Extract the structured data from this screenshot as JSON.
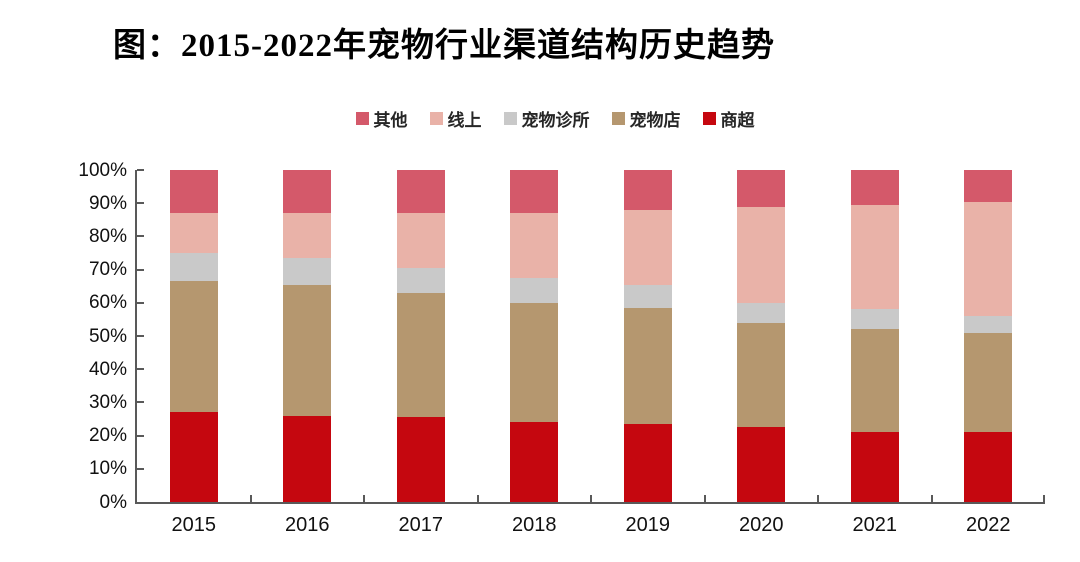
{
  "title": "图：2015-2022年宠物行业渠道结构历史趋势",
  "colors": {
    "axis": "#595959",
    "text": "#111111",
    "shangchao_red": "#c5070f",
    "chongwudian_tan": "#b5976f",
    "zhensuo_gray": "#c9c9c9",
    "xianshang_pink": "#e9b2a8",
    "qita_rose": "#d4596a"
  },
  "chart_data": {
    "type": "bar",
    "stacked": true,
    "title": "图：2015-2022年宠物行业渠道结构历史趋势",
    "categories": [
      "2015",
      "2016",
      "2017",
      "2018",
      "2019",
      "2020",
      "2021",
      "2022"
    ],
    "series": [
      {
        "name": "商超",
        "color": "#c5070f",
        "values": [
          27,
          26,
          25.5,
          24,
          23.5,
          22.5,
          21,
          21
        ]
      },
      {
        "name": "宠物店",
        "color": "#b5976f",
        "values": [
          39.5,
          39.5,
          37.5,
          36,
          35,
          31.5,
          31,
          30
        ]
      },
      {
        "name": "宠物诊所",
        "color": "#c9c9c9",
        "values": [
          8.5,
          8,
          7.5,
          7.5,
          7,
          6,
          6,
          5
        ]
      },
      {
        "name": "线上",
        "color": "#e9b2a8",
        "values": [
          12,
          13.5,
          16.5,
          19.5,
          22.5,
          29,
          31.5,
          34.5
        ]
      },
      {
        "name": "其他",
        "color": "#d4596a",
        "values": [
          13,
          13,
          13,
          13,
          12,
          11,
          10.5,
          9.5
        ]
      }
    ],
    "legend_order": [
      "其他",
      "线上",
      "宠物诊所",
      "宠物店",
      "商超"
    ],
    "y_ticks": [
      "0%",
      "10%",
      "20%",
      "30%",
      "40%",
      "50%",
      "60%",
      "70%",
      "80%",
      "90%",
      "100%"
    ],
    "ylim": [
      0,
      100
    ],
    "xlabel": "",
    "ylabel": "",
    "grid": false,
    "legend_position": "top-center"
  }
}
